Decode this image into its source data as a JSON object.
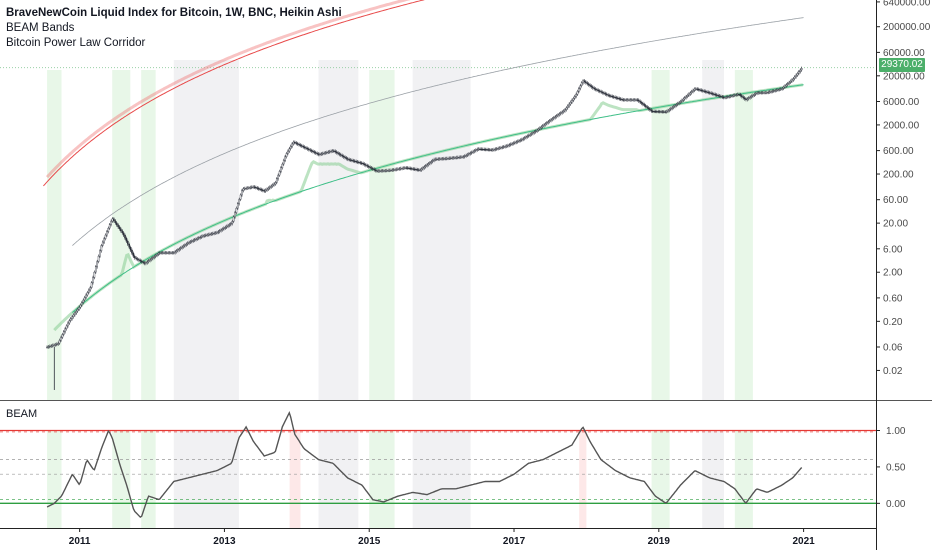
{
  "legend": {
    "title": "BraveNewCoin Liquid Index for Bitcoin, 1W, BNC, Heikin Ashi",
    "line2": "BEAM Bands",
    "line3": "Bitcoin Power Law Corridor"
  },
  "last_price_label": "29370.02",
  "lower_pane_label": "BEAM",
  "colors": {
    "upper_band": "#ef7b7b",
    "lower_band": "#8fd19a",
    "power_law_upper": "#e84a4a",
    "power_law_lower": "#3fbf88",
    "mid_line": "#9aa0a6",
    "candle": "#2a2e39",
    "beam_line": "#555555",
    "overbought": "#e53935",
    "oversold": "#2e9e40",
    "price_tag": "#4caf6a"
  },
  "chart_data": [
    {
      "type": "candlestick",
      "title": "BraveNewCoin Liquid Index for Bitcoin, 1W, BNC, Heikin Ashi",
      "yscale": "log",
      "ylim": [
        0.005,
        700000
      ],
      "xlim": [
        2009.9,
        2022.0
      ],
      "x_ticks": [
        "2011",
        "2013",
        "2015",
        "2017",
        "2019",
        "2021"
      ],
      "y_ticks": [
        "640000.00",
        "200000.00",
        "60000.00",
        "20000.00",
        "6000.00",
        "2000.00",
        "600.00",
        "200.00",
        "60.00",
        "20.00",
        "6.00",
        "2.00",
        "0.60",
        "0.20",
        "0.06",
        "0.02"
      ],
      "last_price": 29370.02,
      "series": [
        {
          "name": "Bitcoin",
          "x": [
            2010.55,
            2010.7,
            2010.85,
            2011.0,
            2011.15,
            2011.3,
            2011.45,
            2011.6,
            2011.75,
            2011.9,
            2012.1,
            2012.3,
            2012.5,
            2012.7,
            2012.9,
            2013.1,
            2013.25,
            2013.4,
            2013.55,
            2013.7,
            2013.85,
            2013.95,
            2014.1,
            2014.3,
            2014.5,
            2014.7,
            2014.9,
            2015.1,
            2015.3,
            2015.5,
            2015.7,
            2015.9,
            2016.1,
            2016.3,
            2016.5,
            2016.7,
            2016.9,
            2017.1,
            2017.3,
            2017.5,
            2017.7,
            2017.85,
            2017.95,
            2018.1,
            2018.3,
            2018.5,
            2018.7,
            2018.9,
            2019.1,
            2019.3,
            2019.5,
            2019.7,
            2019.9,
            2020.1,
            2020.2,
            2020.35,
            2020.5,
            2020.7,
            2020.85,
            2020.98
          ],
          "values": [
            0.06,
            0.07,
            0.2,
            0.4,
            1.0,
            7.0,
            25.0,
            12.0,
            4.0,
            3.0,
            5.0,
            5.0,
            8.0,
            11.0,
            13.0,
            20.0,
            100.0,
            110.0,
            90.0,
            130.0,
            500.0,
            900.0,
            700.0,
            500.0,
            600.0,
            400.0,
            330.0,
            230.0,
            240.0,
            270.0,
            240.0,
            400.0,
            420.0,
            450.0,
            650.0,
            620.0,
            750.0,
            1000.0,
            1500.0,
            2500.0,
            4000.0,
            8000.0,
            16000.0,
            11000.0,
            8000.0,
            6500.0,
            6500.0,
            3800.0,
            3700.0,
            6000.0,
            11000.0,
            9000.0,
            7200.0,
            8500.0,
            6500.0,
            9000.0,
            9200.0,
            11000.0,
            17000.0,
            29370.02
          ]
        },
        {
          "name": "BEAM Bands upper"
        },
        {
          "name": "BEAM Bands lower"
        },
        {
          "name": "Power Law upper"
        },
        {
          "name": "Power Law lower"
        }
      ]
    },
    {
      "type": "line",
      "title": "BEAM",
      "ylim": [
        -0.27,
        1.35
      ],
      "y_ticks": [
        "1.00",
        "0.50",
        "0.00"
      ],
      "reference_lines": [
        1.0,
        0.6,
        0.4,
        0.0
      ],
      "series": [
        {
          "name": "BEAM",
          "x": [
            2010.55,
            2010.65,
            2010.75,
            2010.9,
            2011.0,
            2011.1,
            2011.2,
            2011.3,
            2011.4,
            2011.45,
            2011.55,
            2011.65,
            2011.75,
            2011.85,
            2011.95,
            2012.1,
            2012.3,
            2012.5,
            2012.7,
            2012.9,
            2013.1,
            2013.2,
            2013.3,
            2013.4,
            2013.55,
            2013.7,
            2013.8,
            2013.9,
            2013.97,
            2014.1,
            2014.3,
            2014.5,
            2014.7,
            2014.9,
            2015.05,
            2015.2,
            2015.4,
            2015.6,
            2015.8,
            2016.0,
            2016.2,
            2016.4,
            2016.6,
            2016.8,
            2017.0,
            2017.2,
            2017.4,
            2017.6,
            2017.8,
            2017.95,
            2018.05,
            2018.2,
            2018.4,
            2018.6,
            2018.8,
            2018.95,
            2019.1,
            2019.3,
            2019.5,
            2019.7,
            2019.9,
            2020.05,
            2020.2,
            2020.35,
            2020.5,
            2020.7,
            2020.85,
            2020.98
          ],
          "values": [
            -0.05,
            0.0,
            0.1,
            0.4,
            0.25,
            0.6,
            0.45,
            0.75,
            1.0,
            0.9,
            0.55,
            0.25,
            -0.1,
            -0.2,
            0.1,
            0.05,
            0.3,
            0.35,
            0.4,
            0.45,
            0.55,
            0.9,
            1.05,
            0.85,
            0.65,
            0.7,
            1.05,
            1.25,
            0.95,
            0.75,
            0.6,
            0.55,
            0.35,
            0.25,
            0.05,
            0.02,
            0.1,
            0.15,
            0.12,
            0.2,
            0.2,
            0.25,
            0.3,
            0.3,
            0.4,
            0.55,
            0.6,
            0.7,
            0.8,
            1.05,
            0.85,
            0.6,
            0.45,
            0.35,
            0.3,
            0.1,
            0.0,
            0.25,
            0.45,
            0.35,
            0.3,
            0.2,
            0.0,
            0.2,
            0.15,
            0.25,
            0.35,
            0.5
          ]
        }
      ]
    }
  ]
}
